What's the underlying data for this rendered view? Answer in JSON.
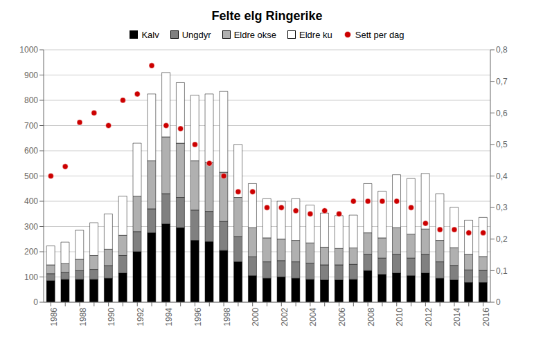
{
  "chart_data": {
    "type": "bar",
    "title": "Felte elg Ringerike",
    "stacked": true,
    "grid": true,
    "legend": "top",
    "categories": [
      "1986",
      null,
      "1988",
      null,
      "1990",
      null,
      "1992",
      null,
      "1994",
      null,
      "1996",
      null,
      "1998",
      null,
      "2000",
      null,
      "2002",
      null,
      "2004",
      null,
      "2006",
      null,
      "2008",
      null,
      "2010",
      null,
      "2012",
      null,
      "2014",
      null,
      "2016"
    ],
    "series": [
      {
        "name": "Kalv",
        "type": "bar",
        "color": "#000000",
        "values": [
          85,
          90,
          90,
          90,
          95,
          115,
          200,
          275,
          310,
          295,
          245,
          240,
          205,
          160,
          105,
          95,
          100,
          95,
          90,
          88,
          88,
          90,
          125,
          110,
          115,
          105,
          115,
          95,
          88,
          78,
          78
        ]
      },
      {
        "name": "Ungdyr",
        "type": "bar",
        "color": "#808080",
        "values": [
          28,
          28,
          35,
          40,
          50,
          70,
          80,
          95,
          120,
          120,
          120,
          120,
          115,
          100,
          75,
          65,
          65,
          65,
          65,
          60,
          60,
          60,
          65,
          65,
          75,
          70,
          75,
          65,
          58,
          50,
          48
        ]
      },
      {
        "name": "Eldre okse",
        "type": "bar",
        "color": "#b0b0b0",
        "values": [
          35,
          35,
          45,
          55,
          65,
          80,
          140,
          190,
          225,
          215,
          195,
          195,
          195,
          155,
          115,
          95,
          85,
          85,
          80,
          70,
          65,
          65,
          85,
          80,
          105,
          95,
          100,
          85,
          70,
          62,
          55
        ]
      },
      {
        "name": "Eldre ku",
        "type": "bar",
        "color": "#ffffff",
        "values": [
          75,
          85,
          115,
          130,
          140,
          155,
          210,
          265,
          255,
          240,
          260,
          270,
          320,
          210,
          175,
          155,
          150,
          165,
          150,
          135,
          130,
          130,
          195,
          185,
          210,
          220,
          220,
          185,
          160,
          135,
          155
        ]
      },
      {
        "name": "Sett per dag",
        "type": "scatter",
        "axis": "y2",
        "marker": "circle",
        "color": "#cc0000",
        "values": [
          0.4,
          0.43,
          0.57,
          0.6,
          0.56,
          0.64,
          0.66,
          0.75,
          0.56,
          0.55,
          0.5,
          0.44,
          0.4,
          0.35,
          0.35,
          0.3,
          0.3,
          0.29,
          0.28,
          0.29,
          0.28,
          0.32,
          0.32,
          0.32,
          0.32,
          0.3,
          0.25,
          0.23,
          0.23,
          0.22,
          0.22
        ]
      }
    ],
    "ylim": [
      0,
      1000
    ],
    "yticks": [
      0,
      100,
      200,
      300,
      400,
      500,
      600,
      700,
      800,
      900,
      1000
    ],
    "y2lim": [
      0,
      0.8
    ],
    "y2ticks": [
      0,
      {
        "value": 0.1,
        "label": "0,1"
      },
      {
        "value": 0.2,
        "label": "0,2"
      },
      {
        "value": 0.3,
        "label": "0,3"
      },
      {
        "value": 0.4,
        "label": "0,4"
      },
      {
        "value": 0.5,
        "label": "0,5"
      },
      {
        "value": 0.6,
        "label": "0,6"
      },
      {
        "value": 0.7,
        "label": "0,7"
      },
      {
        "value": 0.8,
        "label": "0,8"
      }
    ]
  }
}
